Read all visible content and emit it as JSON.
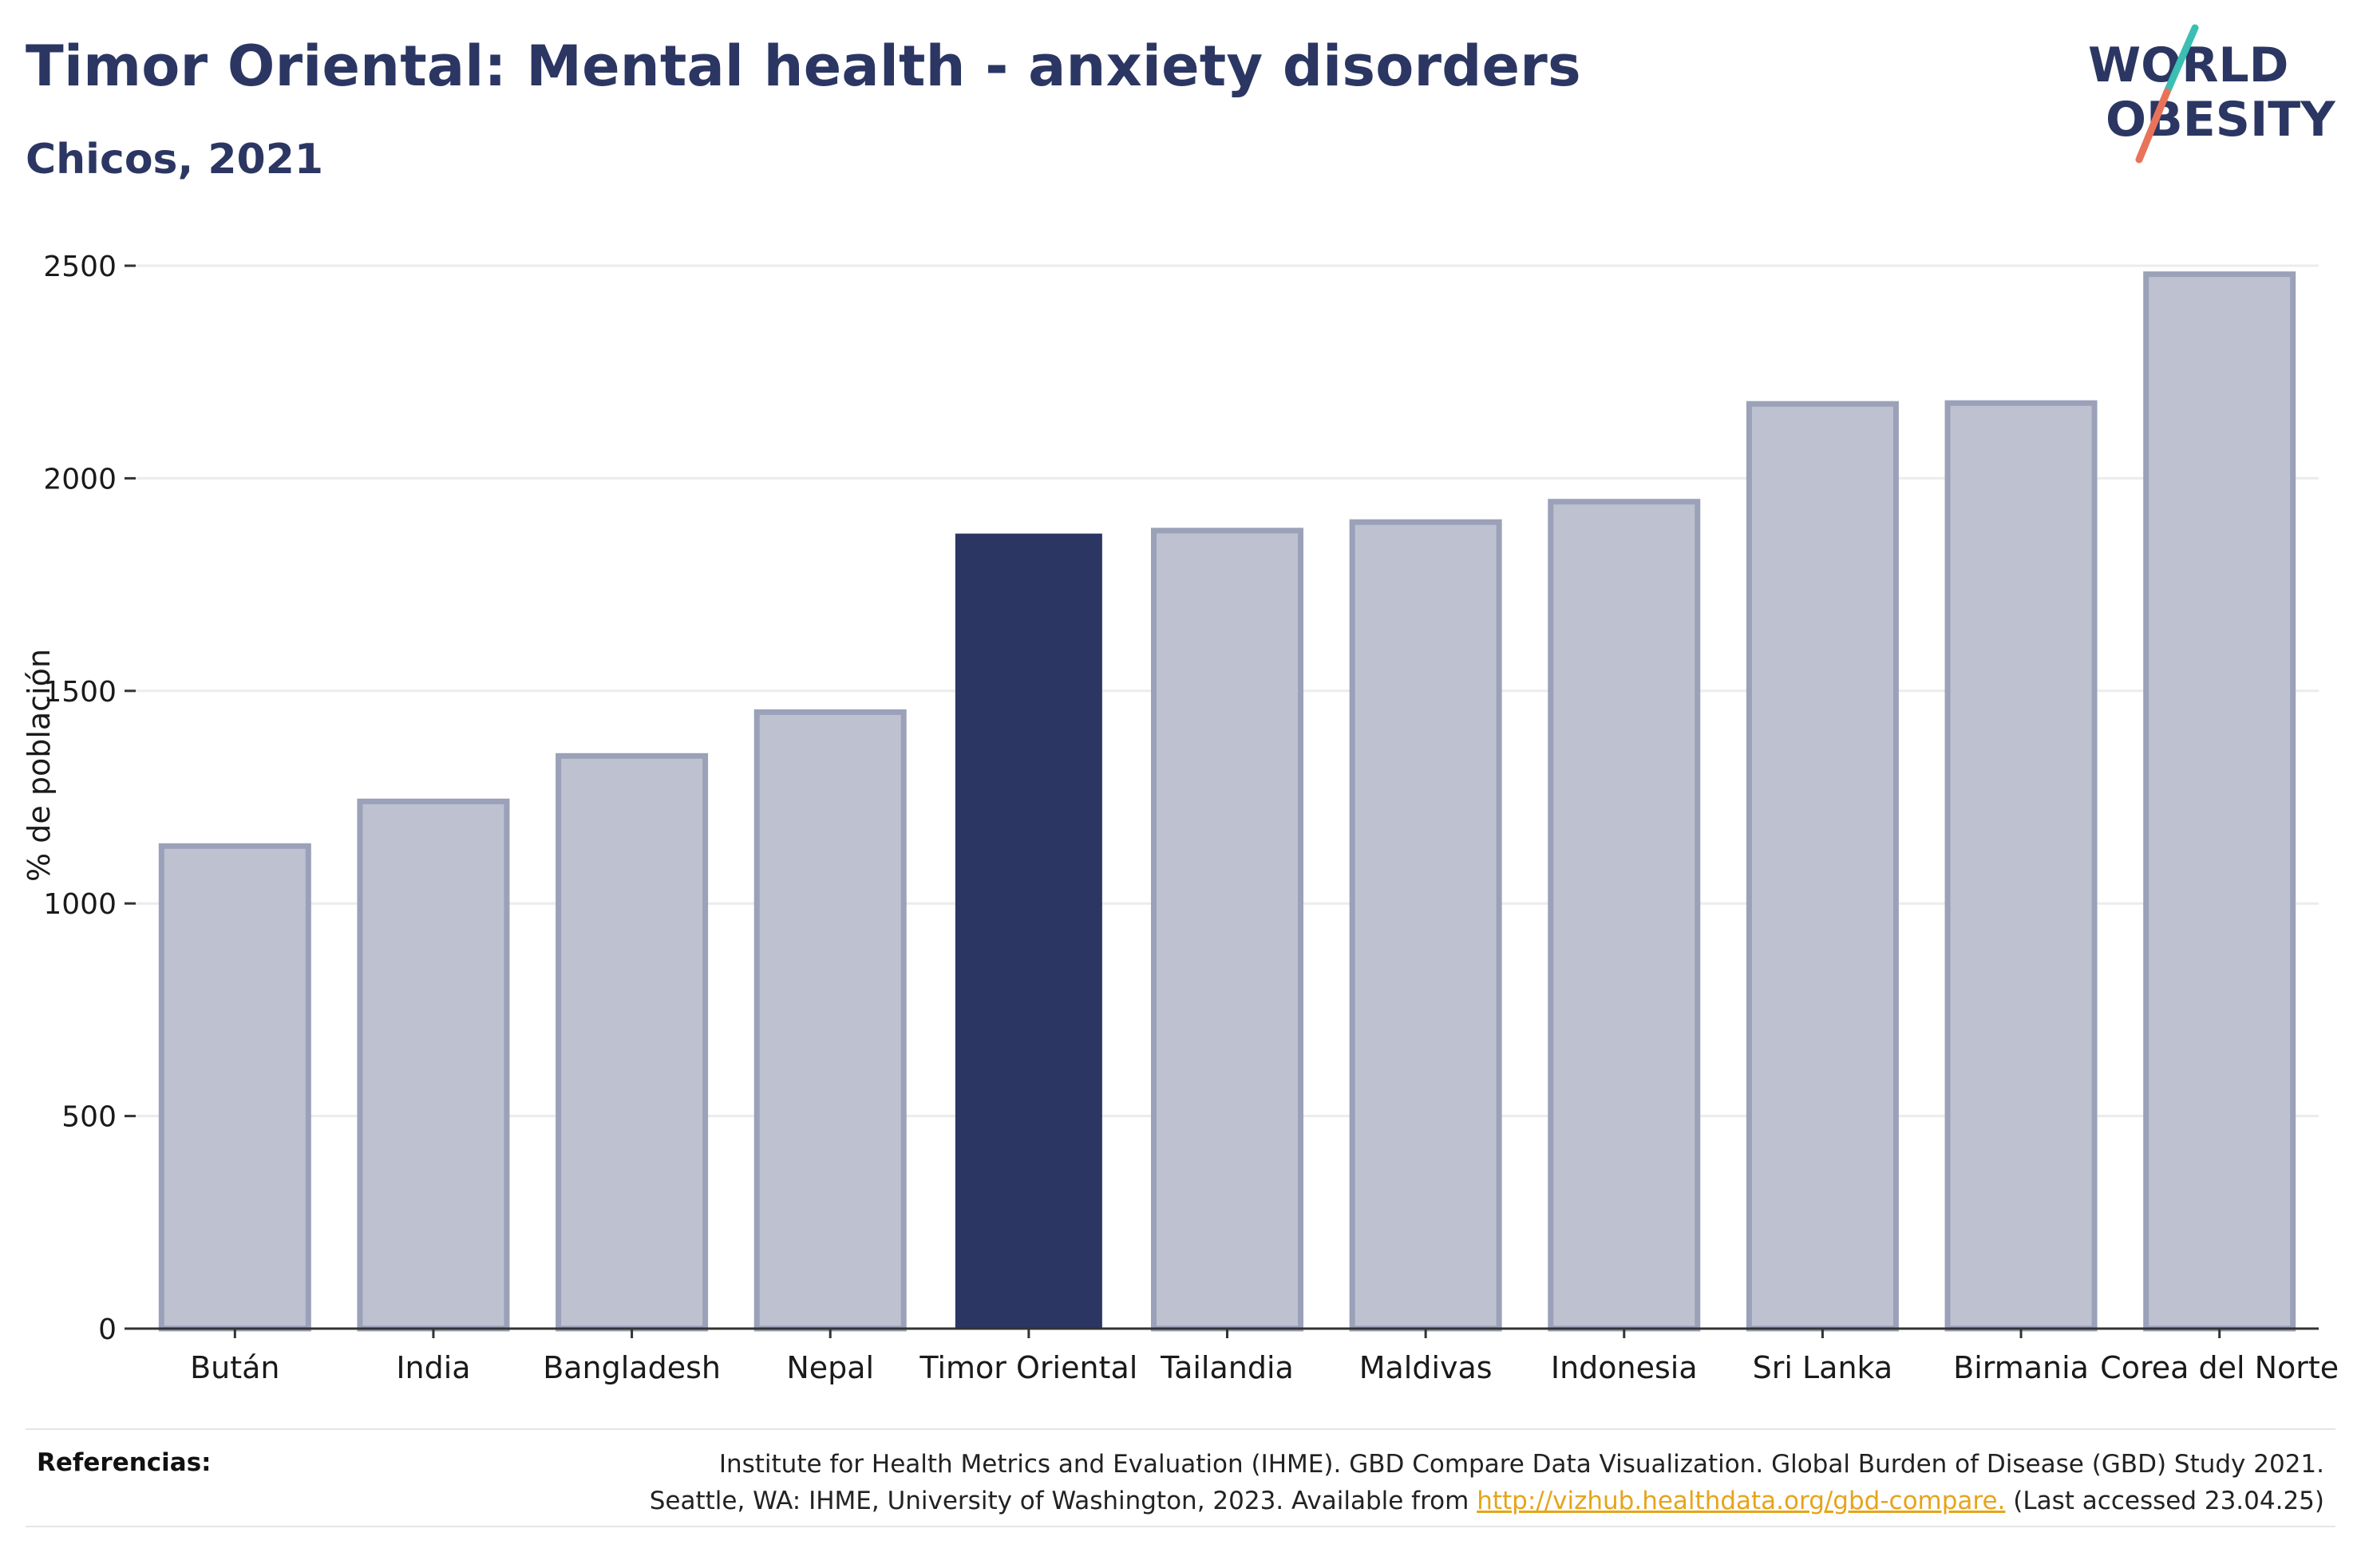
{
  "header": {
    "title": "Timor Oriental: Mental health - anxiety disorders",
    "subtitle": "Chicos, 2021"
  },
  "logo": {
    "line1": "WORLD",
    "line2": "OBESITY",
    "text_color": "#2b3663",
    "slash_colors": [
      "#3bbfb2",
      "#e8735a"
    ]
  },
  "chart_data": {
    "type": "bar",
    "categories": [
      "Bután",
      "India",
      "Bangladesh",
      "Nepal",
      "Timor Oriental",
      "Tailandia",
      "Maldivas",
      "Indonesia",
      "Sri Lanka",
      "Birmania",
      "Corea del Norte"
    ],
    "values": [
      1135,
      1240,
      1347,
      1450,
      1870,
      1877,
      1897,
      1945,
      2175,
      2177,
      2480
    ],
    "highlight": "Timor Oriental",
    "ylabel": "% de población",
    "xlabel": "",
    "ylim": [
      0,
      2500
    ],
    "yticks": [
      0,
      500,
      1000,
      1500,
      2000,
      2500
    ],
    "grid": true,
    "colors": {
      "highlight": "#2b3663",
      "bar_fill": "#bec2d0",
      "bar_stroke": "#9aa1b8",
      "grid": "#ececec",
      "axis": "#333333"
    }
  },
  "references": {
    "label": "Referencias:",
    "line1": "Institute for Health Metrics and Evaluation (IHME). GBD Compare Data Visualization. Global Burden of Disease (GBD) Study 2021.",
    "line2_prefix": "Seattle, WA: IHME, University of Washington, 2023. Available from ",
    "link": "http://vizhub.healthdata.org/gbd-compare.",
    "line2_suffix": " (Last accessed 23.04.25)"
  }
}
